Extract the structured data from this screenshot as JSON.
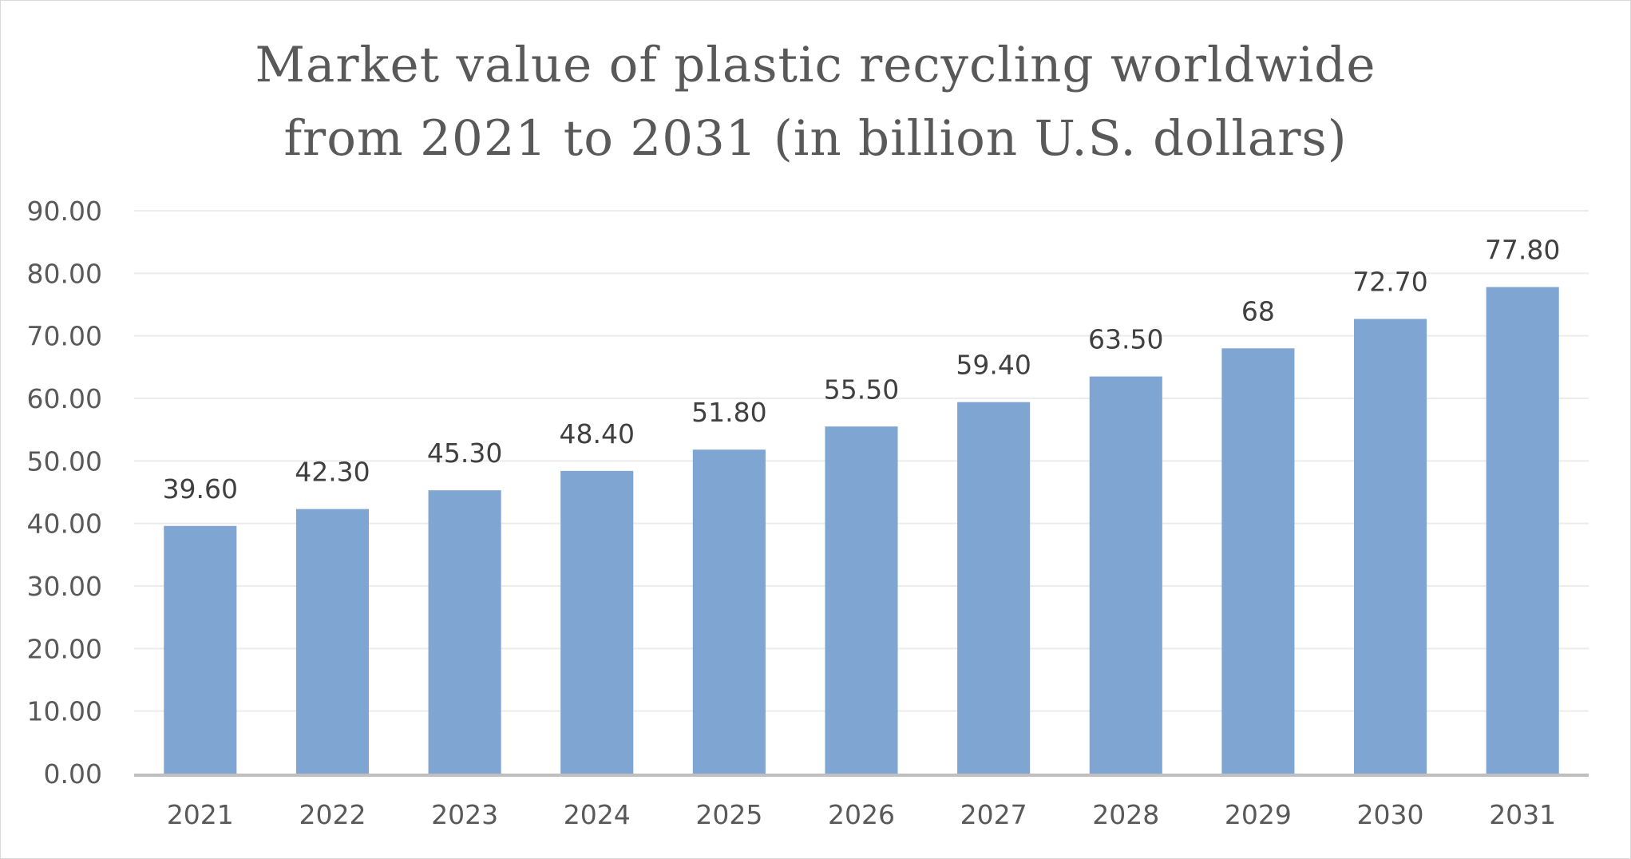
{
  "chart_data": {
    "type": "bar",
    "title_lines": [
      "Market value of plastic recycling worldwide",
      "from 2021 to 2031 (in billion U.S. dollars)"
    ],
    "categories": [
      "2021",
      "2022",
      "2023",
      "2024",
      "2025",
      "2026",
      "2027",
      "2028",
      "2029",
      "2030",
      "2031"
    ],
    "values": [
      39.6,
      42.3,
      45.3,
      48.4,
      51.8,
      55.5,
      59.4,
      63.5,
      68,
      72.7,
      77.8
    ],
    "data_labels": [
      "39.60",
      "42.30",
      "45.30",
      "48.40",
      "51.80",
      "55.50",
      "59.40",
      "63.50",
      "68",
      "72.70",
      "77.80"
    ],
    "y_ticks": [
      "0.00",
      "10.00",
      "20.00",
      "30.00",
      "40.00",
      "50.00",
      "60.00",
      "70.00",
      "80.00",
      "90.00"
    ],
    "ylim": [
      0,
      90
    ],
    "xlabel": "",
    "ylabel": "",
    "grid": true,
    "legend": "none",
    "bar_color": "#7fa5d2",
    "gridline_color": "#ececec",
    "axis_color": "#bfbfbf"
  }
}
